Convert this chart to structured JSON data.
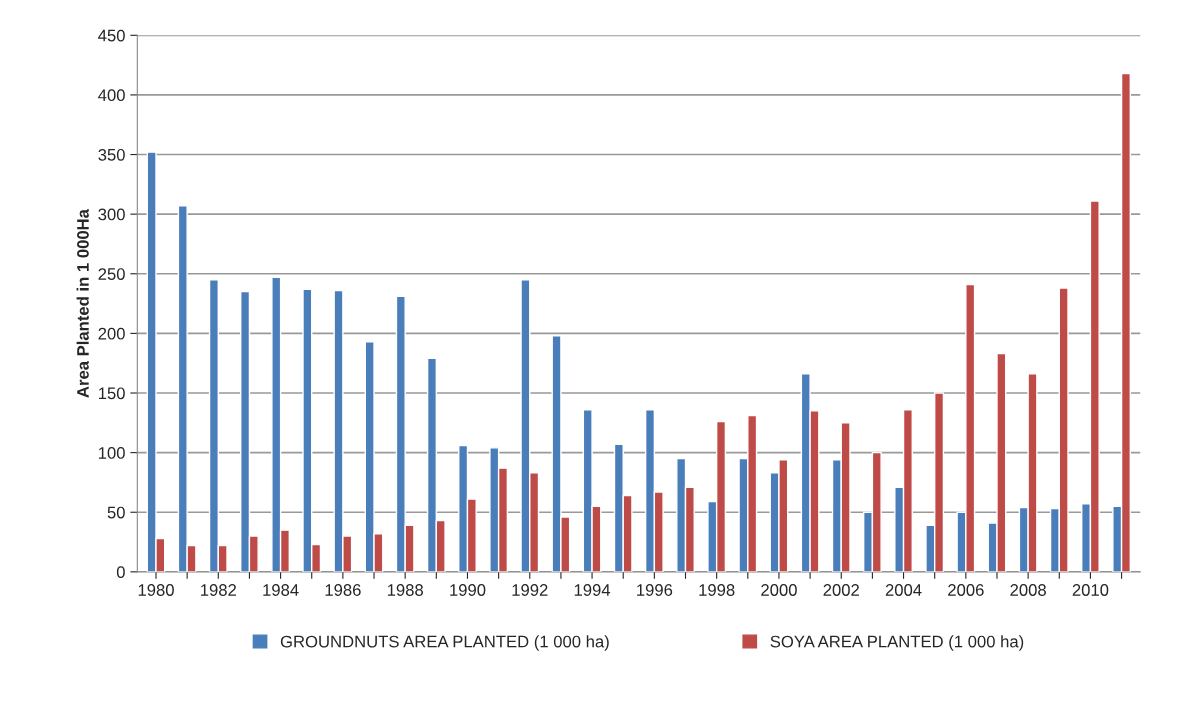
{
  "chart_data": {
    "type": "bar",
    "ylabel": "Area Planted in 1 000Ha",
    "categories": [
      "1980",
      null,
      "1982",
      null,
      "1984",
      null,
      "1986",
      null,
      "1988",
      null,
      "1990",
      null,
      "1992",
      null,
      "1994",
      null,
      "1996",
      null,
      "1998",
      null,
      "2000",
      null,
      "2002",
      null,
      "2004",
      null,
      "2006",
      null,
      "2008",
      null,
      "2010",
      null
    ],
    "series": [
      {
        "name": "GROUNDNUTS AREA PLANTED (1 000 ha)",
        "color": "#4a7ebb",
        "values": [
          352,
          307,
          245,
          235,
          247,
          237,
          236,
          193,
          231,
          179,
          106,
          104,
          245,
          198,
          136,
          107,
          136,
          95,
          59,
          95,
          83,
          166,
          94,
          50,
          71,
          39,
          50,
          41,
          54,
          53,
          57,
          55
        ]
      },
      {
        "name": "SOYA AREA PLANTED (1 000 ha)",
        "color": "#be4b48",
        "values": [
          28,
          22,
          22,
          30,
          35,
          23,
          30,
          32,
          39,
          43,
          61,
          87,
          83,
          46,
          55,
          64,
          67,
          71,
          126,
          131,
          94,
          135,
          125,
          100,
          136,
          150,
          241,
          183,
          166,
          238,
          311,
          418
        ]
      }
    ],
    "ylim": [
      0,
      450
    ],
    "yticks": [
      0,
      50,
      100,
      150,
      200,
      250,
      300,
      350,
      400,
      450
    ],
    "grid": "y",
    "legend": "bottom"
  }
}
